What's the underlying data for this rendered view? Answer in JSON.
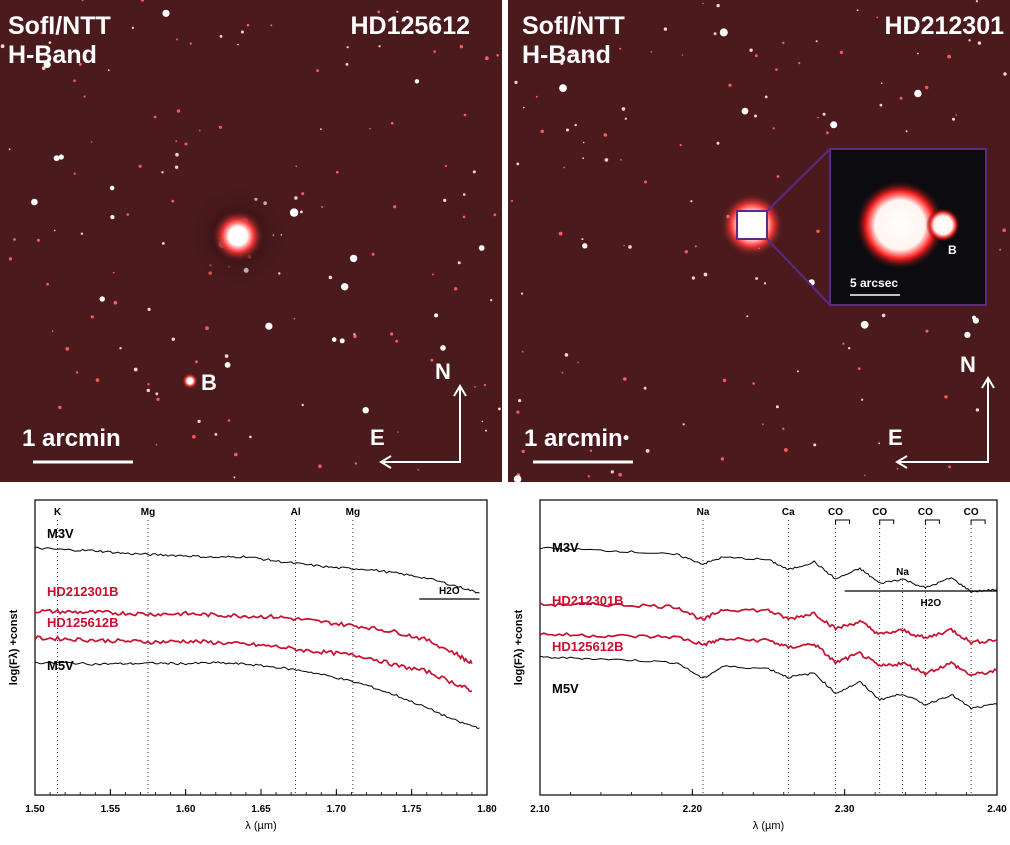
{
  "image_panels": [
    {
      "instrument": "SofI/NTT",
      "band": "H-Band",
      "target": "HD125612",
      "companion_label": "B",
      "scale_label": "1 arcmin",
      "compass_n": "N",
      "compass_e": "E"
    },
    {
      "instrument": "SofI/NTT",
      "band": "H-Band",
      "target": "HD212301",
      "companion_label": "B",
      "scale_label": "1 arcmin",
      "inset_scale_label": "5 arcsec",
      "compass_n": "N",
      "compass_e": "E"
    }
  ],
  "chart_data": [
    {
      "type": "line",
      "xlabel": "λ (µm)",
      "ylabel": "log(Fλ) +const",
      "xlim": [
        1.5,
        1.8
      ],
      "x_ticks": [
        "1.50",
        "1.55",
        "1.60",
        "1.65",
        "1.70",
        "1.75",
        "1.80"
      ],
      "features": [
        {
          "label": "K",
          "x": 1.515
        },
        {
          "label": "Mg",
          "x": 1.575
        },
        {
          "label": "Al",
          "x": 1.673
        },
        {
          "label": "Mg",
          "x": 1.711
        }
      ],
      "band_label": "H2O",
      "band_range": [
        1.755,
        1.795
      ],
      "series": [
        {
          "name": "M3V",
          "color": "#000000",
          "x": [
            1.5,
            1.52,
            1.54,
            1.56,
            1.58,
            1.6,
            1.62,
            1.64,
            1.66,
            1.68,
            1.7,
            1.72,
            1.74,
            1.76,
            1.78,
            1.795
          ],
          "y": [
            0.0,
            -0.04,
            -0.06,
            -0.12,
            -0.15,
            -0.17,
            -0.21,
            -0.19,
            -0.29,
            -0.37,
            -0.44,
            -0.47,
            -0.56,
            -0.67,
            -0.85,
            -1.0
          ]
        },
        {
          "name": "HD212301B",
          "color": "#c8102e",
          "x": [
            1.5,
            1.52,
            1.54,
            1.56,
            1.58,
            1.6,
            1.62,
            1.64,
            1.66,
            1.68,
            1.7,
            1.72,
            1.74,
            1.76,
            1.78,
            1.79
          ],
          "y": [
            -1.4,
            -1.42,
            -1.43,
            -1.45,
            -1.47,
            -1.46,
            -1.49,
            -1.51,
            -1.53,
            -1.6,
            -1.68,
            -1.76,
            -1.87,
            -2.04,
            -2.36,
            -2.57
          ]
        },
        {
          "name": "HD125612B",
          "color": "#c8102e",
          "x": [
            1.5,
            1.52,
            1.54,
            1.56,
            1.58,
            1.6,
            1.62,
            1.64,
            1.66,
            1.68,
            1.7,
            1.72,
            1.74,
            1.76,
            1.78,
            1.79
          ],
          "y": [
            -2.0,
            -2.02,
            -2.05,
            -2.07,
            -2.09,
            -2.07,
            -2.1,
            -2.14,
            -2.19,
            -2.28,
            -2.34,
            -2.42,
            -2.61,
            -2.74,
            -3.03,
            -3.17
          ]
        },
        {
          "name": "M5V",
          "color": "#000000",
          "x": [
            1.5,
            1.52,
            1.54,
            1.56,
            1.58,
            1.6,
            1.62,
            1.64,
            1.66,
            1.68,
            1.7,
            1.72,
            1.74,
            1.76,
            1.78,
            1.795
          ],
          "y": [
            -2.55,
            -2.55,
            -2.58,
            -2.57,
            -2.56,
            -2.57,
            -2.55,
            -2.58,
            -2.65,
            -2.74,
            -2.88,
            -3.05,
            -3.28,
            -3.55,
            -3.85,
            -4.0
          ]
        }
      ]
    },
    {
      "type": "line",
      "xlabel": "λ (µm)",
      "ylabel": "log(Fλ) +const",
      "xlim": [
        2.1,
        2.4
      ],
      "x_ticks": [
        "2.10",
        "2.20",
        "2.30",
        "2.40"
      ],
      "features": [
        {
          "label": "Na",
          "x": 2.207
        },
        {
          "label": "Ca",
          "x": 2.263
        },
        {
          "label": "CO",
          "x": 2.294
        },
        {
          "label": "CO",
          "x": 2.323
        },
        {
          "label": "Na",
          "x": 2.338
        },
        {
          "label": "CO",
          "x": 2.353
        },
        {
          "label": "CO",
          "x": 2.383
        }
      ],
      "band_label": "H2O",
      "band_range": [
        2.3,
        2.4
      ],
      "series": [
        {
          "name": "M3V",
          "color": "#000000",
          "x": [
            2.1,
            2.13,
            2.16,
            2.19,
            2.207,
            2.22,
            2.25,
            2.263,
            2.28,
            2.294,
            2.31,
            2.323,
            2.338,
            2.353,
            2.37,
            2.383,
            2.4
          ],
          "y": [
            0.0,
            -0.04,
            -0.09,
            -0.16,
            -0.38,
            -0.22,
            -0.28,
            -0.52,
            -0.33,
            -0.74,
            -0.49,
            -0.84,
            -0.74,
            -0.95,
            -0.71,
            -1.04,
            -0.99
          ]
        },
        {
          "name": "HD212301B",
          "color": "#c8102e",
          "x": [
            2.1,
            2.13,
            2.16,
            2.19,
            2.207,
            2.22,
            2.25,
            2.263,
            2.28,
            2.294,
            2.31,
            2.323,
            2.338,
            2.353,
            2.37,
            2.383,
            2.4
          ],
          "y": [
            -1.35,
            -1.34,
            -1.36,
            -1.4,
            -1.72,
            -1.46,
            -1.49,
            -1.69,
            -1.55,
            -1.92,
            -1.75,
            -2.06,
            -1.96,
            -2.15,
            -1.94,
            -2.25,
            -2.18
          ]
        },
        {
          "name": "HD125612B",
          "color": "#c8102e",
          "x": [
            2.1,
            2.13,
            2.16,
            2.19,
            2.207,
            2.22,
            2.25,
            2.263,
            2.28,
            2.294,
            2.31,
            2.323,
            2.338,
            2.353,
            2.37,
            2.383,
            2.4
          ],
          "y": [
            -2.05,
            -2.08,
            -2.1,
            -2.12,
            -2.3,
            -2.17,
            -2.2,
            -2.37,
            -2.28,
            -2.73,
            -2.51,
            -2.82,
            -2.74,
            -2.98,
            -2.74,
            -3.03,
            -2.92
          ]
        },
        {
          "name": "M5V",
          "color": "#000000",
          "x": [
            2.1,
            2.13,
            2.16,
            2.19,
            2.207,
            2.22,
            2.25,
            2.263,
            2.28,
            2.294,
            2.31,
            2.323,
            2.338,
            2.353,
            2.37,
            2.383,
            2.4
          ],
          "y": [
            -2.6,
            -2.63,
            -2.67,
            -2.73,
            -3.11,
            -2.82,
            -2.87,
            -3.08,
            -2.98,
            -3.46,
            -3.19,
            -3.61,
            -3.47,
            -3.73,
            -3.49,
            -3.82,
            -3.72
          ]
        }
      ]
    }
  ]
}
